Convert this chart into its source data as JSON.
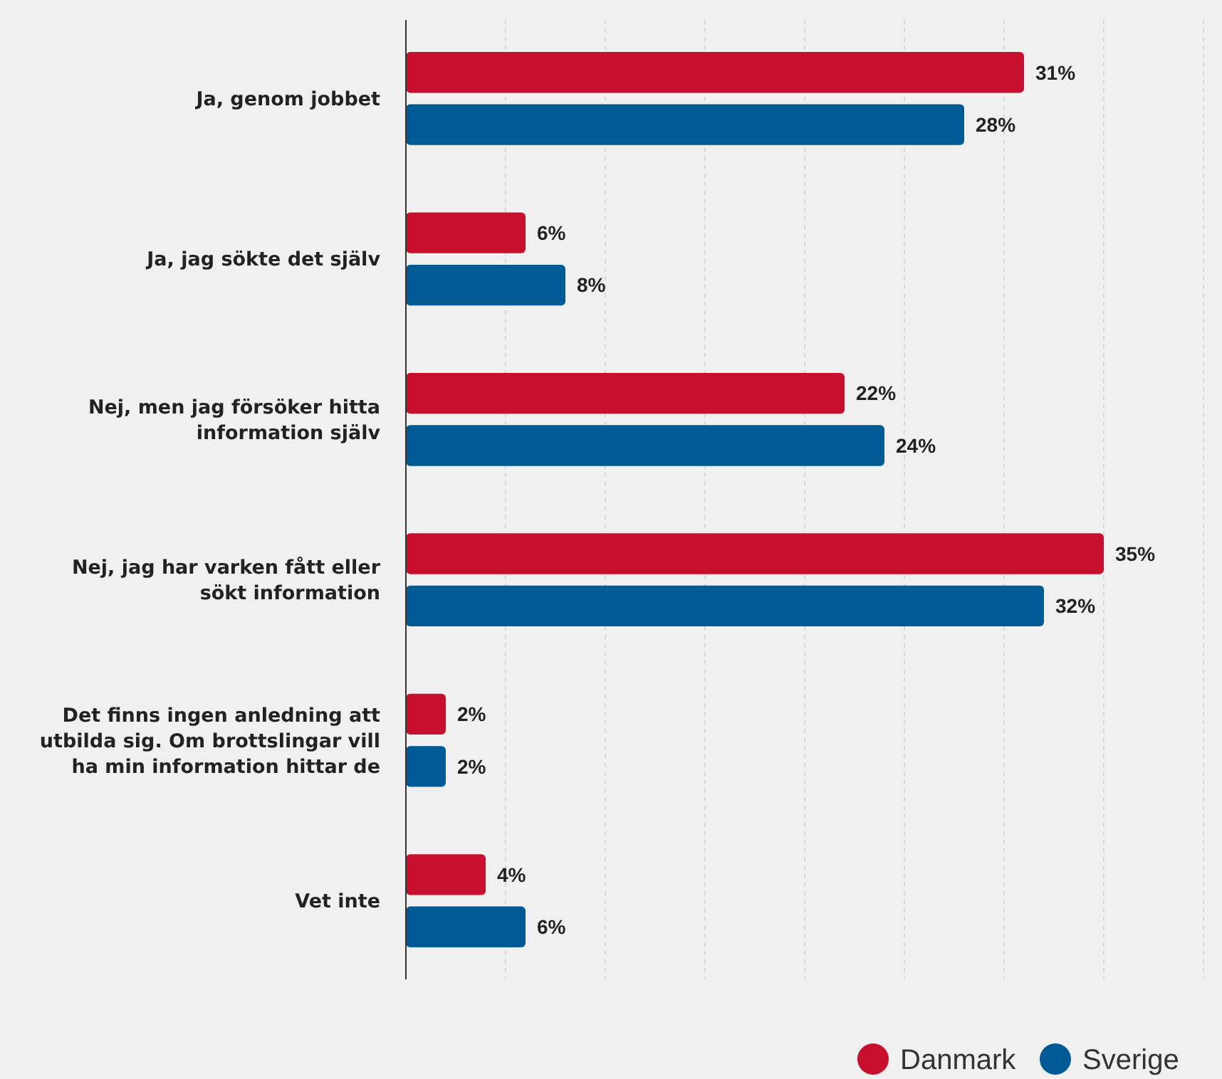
{
  "chart_data": {
    "type": "bar",
    "orientation": "horizontal",
    "categories": [
      "Ja, genom jobbet",
      "Ja, jag sökte det själv",
      "Nej, men jag försöker hitta information själv",
      "Nej, jag har varken fått eller sökt information",
      "Det finns ingen anledning att utbilda sig. Om brottslingar vill ha min information hittar de",
      "Vet inte"
    ],
    "series": [
      {
        "name": "Danmark",
        "color": "#c8102e",
        "values": [
          31,
          6,
          22,
          35,
          2,
          4
        ],
        "value_labels": [
          "31%",
          "6%",
          "22%",
          "35%",
          "2%",
          "4%"
        ]
      },
      {
        "name": "Sverige",
        "color": "#005a96",
        "values": [
          28,
          8,
          24,
          32,
          2,
          6
        ],
        "value_labels": [
          "28%",
          "8%",
          "24%",
          "32%",
          "2%",
          "6%"
        ]
      }
    ],
    "xlim": [
      0,
      40
    ],
    "xticks": [
      {
        "value": 0,
        "label": null
      },
      {
        "value": 5,
        "label": null
      },
      {
        "value": 10,
        "label": null
      },
      {
        "value": 15,
        "label": null
      },
      {
        "value": 20,
        "label": null
      },
      {
        "value": 25,
        "label": null
      },
      {
        "value": 30,
        "label": null
      },
      {
        "value": 35,
        "label": null
      },
      {
        "value": 40,
        "label": null
      }
    ],
    "tick_labels": "y",
    "grid": "x",
    "legend": "bottom right"
  }
}
